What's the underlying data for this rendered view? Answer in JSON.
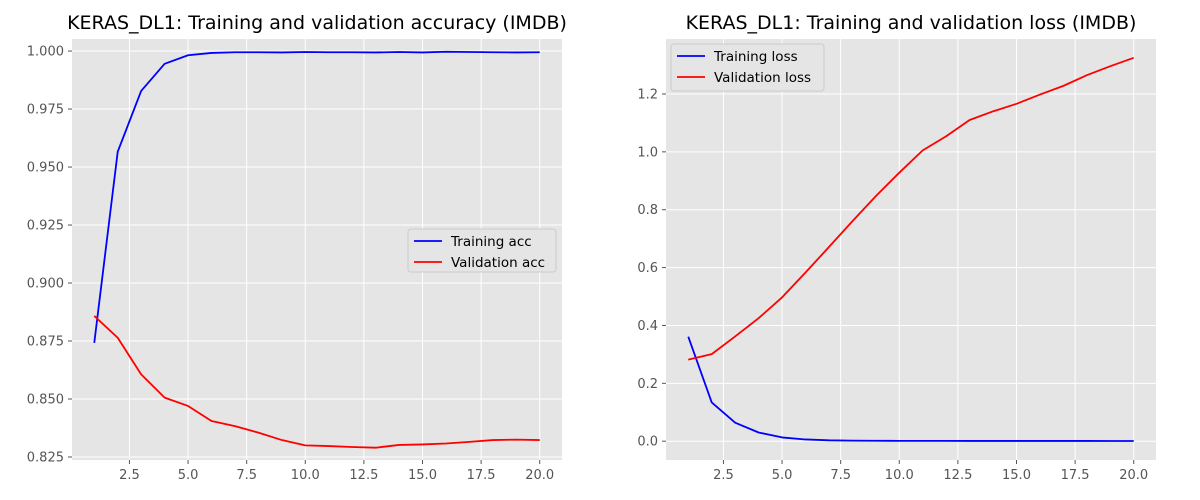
{
  "chart_data": [
    {
      "type": "line",
      "title": "KERAS_DL1: Training and validation accuracy (IMDB)",
      "xlabel": "",
      "ylabel": "",
      "xlim": [
        0.05,
        20.95
      ],
      "ylim": [
        0.8237,
        1.0052
      ],
      "xticks": [
        2.5,
        5.0,
        7.5,
        10.0,
        12.5,
        15.0,
        17.5,
        20.0
      ],
      "xtick_labels": [
        "2.5",
        "5.0",
        "7.5",
        "10.0",
        "12.5",
        "15.0",
        "17.5",
        "20.0"
      ],
      "yticks": [
        0.825,
        0.85,
        0.875,
        0.9,
        0.925,
        0.95,
        0.975,
        1.0
      ],
      "ytick_labels": [
        "0.825",
        "0.850",
        "0.875",
        "0.900",
        "0.925",
        "0.950",
        "0.975",
        "1.000"
      ],
      "grid": true,
      "legend_position": "center-right",
      "x": [
        1,
        2,
        3,
        4,
        5,
        6,
        7,
        8,
        9,
        10,
        11,
        12,
        13,
        14,
        15,
        16,
        17,
        18,
        19,
        20
      ],
      "series": [
        {
          "name": "Training acc",
          "color": "#0000ff",
          "values": [
            0.8742,
            0.9566,
            0.9828,
            0.9945,
            0.9982,
            0.9992,
            0.9995,
            0.9995,
            0.9994,
            0.9996,
            0.9995,
            0.9995,
            0.9994,
            0.9996,
            0.9994,
            0.9997,
            0.9996,
            0.9995,
            0.9994,
            0.9995
          ]
        },
        {
          "name": "Validation acc",
          "color": "#ff0000",
          "values": [
            0.8858,
            0.8764,
            0.8606,
            0.8506,
            0.847,
            0.8405,
            0.8383,
            0.8355,
            0.8323,
            0.83,
            0.8297,
            0.8293,
            0.829,
            0.8302,
            0.8304,
            0.8308,
            0.8315,
            0.8323,
            0.8325,
            0.8323
          ]
        }
      ]
    },
    {
      "type": "line",
      "title": "KERAS_DL1: Training and validation loss (IMDB)",
      "xlabel": "",
      "ylabel": "",
      "xlim": [
        0.05,
        20.95
      ],
      "ylim": [
        -0.065,
        1.39
      ],
      "xticks": [
        2.5,
        5.0,
        7.5,
        10.0,
        12.5,
        15.0,
        17.5,
        20.0
      ],
      "xtick_labels": [
        "2.5",
        "5.0",
        "7.5",
        "10.0",
        "12.5",
        "15.0",
        "17.5",
        "20.0"
      ],
      "yticks": [
        0.0,
        0.2,
        0.4,
        0.6,
        0.8,
        1.0,
        1.2
      ],
      "ytick_labels": [
        "0.0",
        "0.2",
        "0.4",
        "0.6",
        "0.8",
        "1.0",
        "1.2"
      ],
      "grid": true,
      "legend_position": "top-left",
      "x": [
        1,
        2,
        3,
        4,
        5,
        6,
        7,
        8,
        9,
        10,
        11,
        12,
        13,
        14,
        15,
        16,
        17,
        18,
        19,
        20
      ],
      "series": [
        {
          "name": "Training loss",
          "color": "#0000ff",
          "values": [
            0.361,
            0.134,
            0.064,
            0.03,
            0.013,
            0.006,
            0.003,
            0.002,
            0.0015,
            0.0012,
            0.001,
            0.001,
            0.0009,
            0.0009,
            0.0008,
            0.0008,
            0.0008,
            0.0008,
            0.0007,
            0.0007
          ]
        },
        {
          "name": "Validation loss",
          "color": "#ff0000",
          "values": [
            0.282,
            0.301,
            0.362,
            0.425,
            0.497,
            0.583,
            0.671,
            0.76,
            0.847,
            0.928,
            1.005,
            1.054,
            1.11,
            1.14,
            1.166,
            1.198,
            1.228,
            1.265,
            1.296,
            1.325
          ]
        }
      ]
    }
  ]
}
